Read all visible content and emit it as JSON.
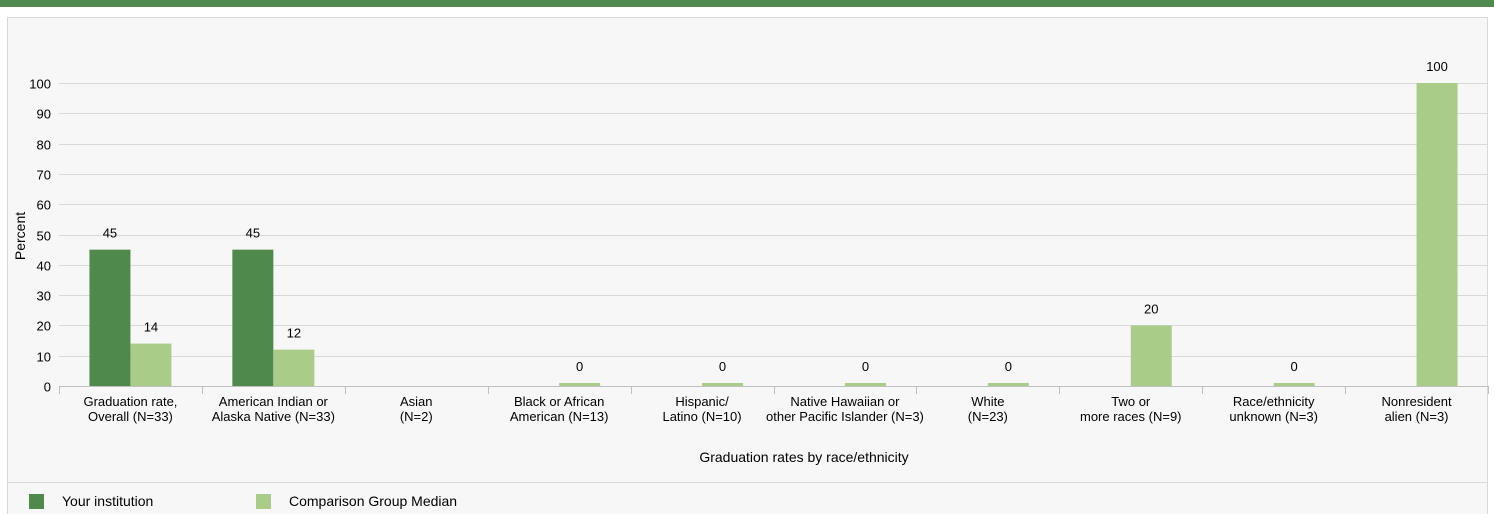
{
  "chart_data": {
    "type": "bar",
    "ylabel": "Percent",
    "xlabel": "Graduation rates by race/ethnicity",
    "ylim": [
      0,
      100
    ],
    "yticks": [
      0,
      10,
      20,
      30,
      40,
      50,
      60,
      70,
      80,
      90,
      100
    ],
    "grid": true,
    "legend_placement": "bottom-left",
    "categories": [
      [
        "Graduation rate,",
        "Overall (N=33)"
      ],
      [
        "American Indian or",
        "Alaska Native (N=33)"
      ],
      [
        "Asian",
        "(N=2)"
      ],
      [
        "Black or African",
        "American (N=13)"
      ],
      [
        "Hispanic/",
        "Latino (N=10)"
      ],
      [
        "Native Hawaiian or",
        "other Pacific Islander (N=3)"
      ],
      [
        "White",
        "(N=23)"
      ],
      [
        "Two or",
        "more races (N=9)"
      ],
      [
        "Race/ethnicity",
        "unknown (N=3)"
      ],
      [
        "Nonresident",
        "alien (N=3)"
      ]
    ],
    "series": [
      {
        "name": "Your institution",
        "color": "#4f8a4c",
        "values": [
          45,
          45,
          null,
          null,
          null,
          null,
          null,
          null,
          null,
          null
        ]
      },
      {
        "name": "Comparison Group Median",
        "color": "#a9cd88",
        "values": [
          14,
          12,
          null,
          0,
          0,
          0,
          0,
          20,
          0,
          100
        ]
      }
    ]
  }
}
